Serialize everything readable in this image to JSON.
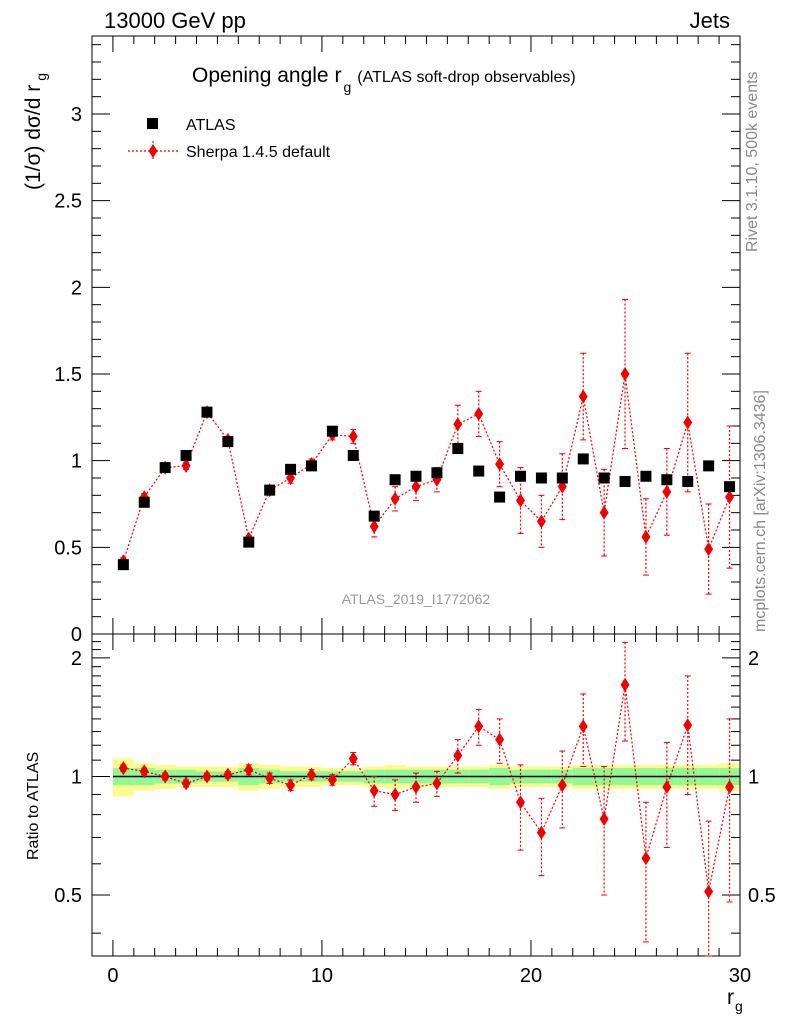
{
  "header": {
    "energy_label": "13000 GeV pp",
    "category_label": "Jets"
  },
  "side_labels": {
    "rivet": "Rivet 3.1.10,  500k events",
    "mcplots": "mcplots.cern.ch [arXiv:1306.3436]"
  },
  "colors": {
    "mc_red": "#ee0000",
    "data_black": "#000000",
    "band_green": "#93f793",
    "band_yellow": "#fbfb8f",
    "watermark": "#999999"
  },
  "chart_data": [
    {
      "type": "scatter",
      "title": "Opening angle r",
      "title_sub": "g",
      "title_note": "(ATLAS soft-drop observables)",
      "ylabel": "(1/σ) dσ/d r",
      "ylabel_sub": "g",
      "watermark": "ATLAS_2019_I1772062",
      "xlim": [
        -1,
        30
      ],
      "ylim": [
        0,
        3.45
      ],
      "yticks": [
        0,
        0.5,
        1,
        1.5,
        2,
        2.5,
        3
      ],
      "ytick_labels": [
        "0",
        "0.5",
        "1",
        "1.5",
        "2",
        "2.5",
        "3"
      ],
      "legend_position": "top-left",
      "series": [
        {
          "name": "ATLAS",
          "marker": "square",
          "x": [
            0.5,
            1.5,
            2.5,
            3.5,
            4.5,
            5.5,
            6.5,
            7.5,
            8.5,
            9.5,
            10.5,
            11.5,
            12.5,
            13.5,
            14.5,
            15.5,
            16.5,
            17.5,
            18.5,
            19.5,
            20.5,
            21.5,
            22.5,
            23.5,
            24.5,
            25.5,
            26.5,
            27.5,
            28.5,
            29.5
          ],
          "y": [
            0.4,
            0.76,
            0.96,
            1.03,
            1.28,
            1.11,
            0.53,
            0.83,
            0.95,
            0.97,
            1.17,
            1.03,
            0.68,
            0.89,
            0.91,
            0.93,
            1.07,
            0.94,
            0.79,
            0.91,
            0.9,
            0.9,
            1.01,
            0.9,
            0.88,
            0.91,
            0.89,
            0.88,
            0.97,
            0.85
          ]
        },
        {
          "name": "Sherpa 1.4.5 default",
          "marker": "diamond",
          "x": [
            0.5,
            1.5,
            2.5,
            3.5,
            4.5,
            5.5,
            6.5,
            7.5,
            8.5,
            9.5,
            10.5,
            11.5,
            12.5,
            13.5,
            14.5,
            15.5,
            16.5,
            17.5,
            18.5,
            19.5,
            20.5,
            21.5,
            22.5,
            23.5,
            24.5,
            25.5,
            26.5,
            27.5,
            28.5,
            29.5
          ],
          "y": [
            0.42,
            0.79,
            0.96,
            0.97,
            1.28,
            1.12,
            0.55,
            0.83,
            0.9,
            0.98,
            1.15,
            1.14,
            0.62,
            0.78,
            0.85,
            0.89,
            1.21,
            1.27,
            0.98,
            0.77,
            0.65,
            0.85,
            1.37,
            0.7,
            1.5,
            0.56,
            0.82,
            1.22,
            0.49,
            0.79
          ],
          "yerr": [
            0.02,
            0.02,
            0.02,
            0.02,
            0.02,
            0.02,
            0.02,
            0.02,
            0.03,
            0.03,
            0.03,
            0.04,
            0.06,
            0.07,
            0.08,
            0.07,
            0.11,
            0.13,
            0.13,
            0.19,
            0.15,
            0.19,
            0.25,
            0.25,
            0.43,
            0.22,
            0.25,
            0.4,
            0.26,
            0.41
          ]
        }
      ]
    },
    {
      "type": "scatter",
      "ylabel": "Ratio to ATLAS",
      "xlabel": "r",
      "xlabel_sub": "g",
      "xlim": [
        -1,
        30
      ],
      "ylim": [
        0.35,
        2.3
      ],
      "xticks": [
        0,
        10,
        20,
        30
      ],
      "xtick_labels": [
        "0",
        "10",
        "20",
        "30"
      ],
      "yticks": [
        0.5,
        1,
        2
      ],
      "ytick_labels": [
        "0.5",
        "1",
        "2"
      ],
      "band_inner": [
        0.05,
        0.05,
        0.04,
        0.04,
        0.03,
        0.03,
        0.05,
        0.04,
        0.03,
        0.03,
        0.03,
        0.03,
        0.04,
        0.04,
        0.04,
        0.04,
        0.04,
        0.04,
        0.05,
        0.04,
        0.04,
        0.04,
        0.05,
        0.05,
        0.05,
        0.05,
        0.05,
        0.05,
        0.05,
        0.05
      ],
      "band_outer": [
        0.11,
        0.08,
        0.07,
        0.06,
        0.06,
        0.06,
        0.08,
        0.07,
        0.06,
        0.06,
        0.05,
        0.05,
        0.06,
        0.07,
        0.06,
        0.06,
        0.06,
        0.06,
        0.07,
        0.06,
        0.06,
        0.06,
        0.07,
        0.07,
        0.07,
        0.07,
        0.07,
        0.07,
        0.07,
        0.08
      ],
      "series": [
        {
          "name": "Sherpa 1.4.5 default",
          "marker": "diamond",
          "x": [
            0.5,
            1.5,
            2.5,
            3.5,
            4.5,
            5.5,
            6.5,
            7.5,
            8.5,
            9.5,
            10.5,
            11.5,
            12.5,
            13.5,
            14.5,
            15.5,
            16.5,
            17.5,
            18.5,
            19.5,
            20.5,
            21.5,
            22.5,
            23.5,
            24.5,
            25.5,
            26.5,
            27.5,
            28.5,
            29.5
          ],
          "y": [
            1.05,
            1.03,
            1.0,
            0.96,
            1.0,
            1.01,
            1.04,
            0.99,
            0.95,
            1.01,
            0.98,
            1.11,
            0.92,
            0.9,
            0.94,
            0.96,
            1.13,
            1.34,
            1.24,
            0.86,
            0.72,
            0.95,
            1.34,
            0.78,
            1.71,
            0.62,
            0.94,
            1.35,
            0.51,
            0.94
          ],
          "yerr": [
            0.02,
            0.02,
            0.02,
            0.02,
            0.02,
            0.02,
            0.03,
            0.03,
            0.03,
            0.03,
            0.03,
            0.04,
            0.08,
            0.08,
            0.08,
            0.07,
            0.11,
            0.14,
            0.16,
            0.21,
            0.16,
            0.21,
            0.28,
            0.28,
            0.48,
            0.24,
            0.28,
            0.45,
            0.26,
            0.46
          ]
        }
      ]
    }
  ]
}
